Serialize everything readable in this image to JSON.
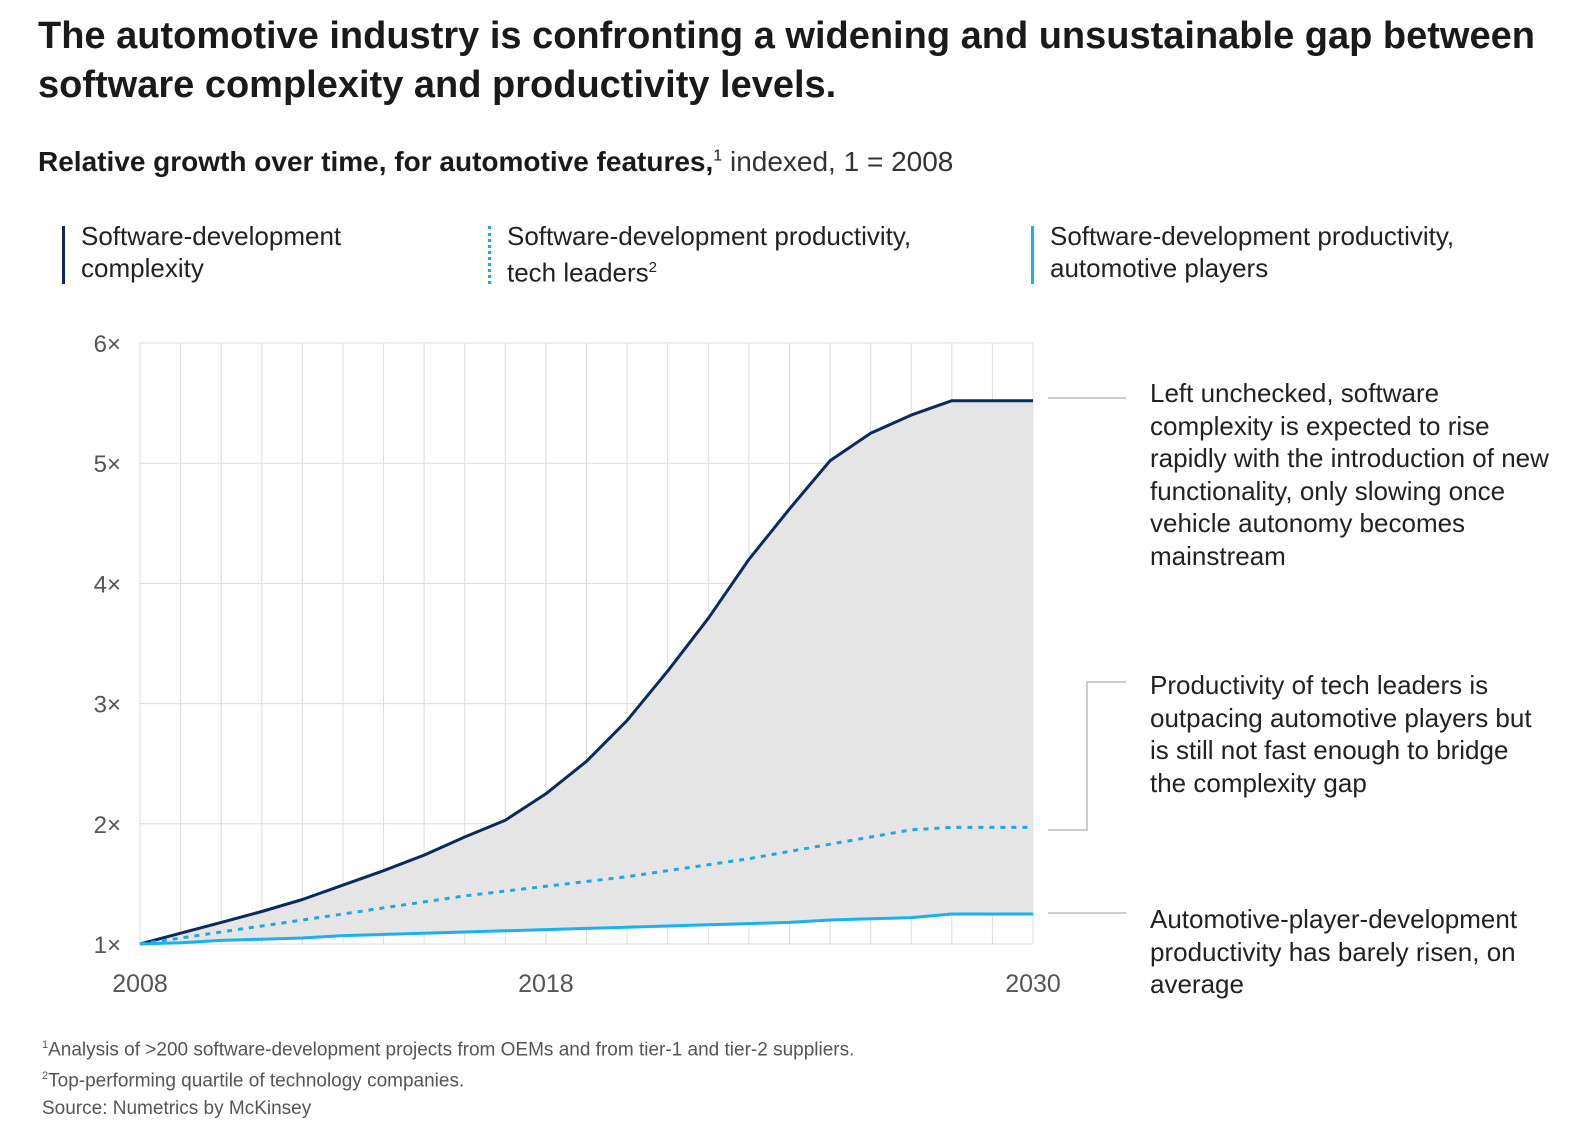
{
  "title": "The automotive industry is confronting a widening and unsustainable gap between software complexity and productivity levels.",
  "subtitle": {
    "bold": "Relative growth over time, for automotive features,",
    "sup": "1",
    "rest": " indexed, 1 = 2008"
  },
  "legend": [
    {
      "label_line1": "Software-development",
      "label_line2": "complexity",
      "sup": "",
      "style": "solid-dark"
    },
    {
      "label_line1": "Software-development productivity,",
      "label_line2": "tech leaders",
      "sup": "2",
      "style": "dotted"
    },
    {
      "label_line1": "Software-development productivity,",
      "label_line2": "automotive players",
      "sup": "",
      "style": "solid-light"
    }
  ],
  "annotations": {
    "complexity": "Left unchecked, software complexity is expected to rise rapidly with the introduction of new functionality, only slowing once vehicle autonomy becomes mainstream",
    "tech_leaders": "Productivity of tech leaders is outpacing automotive players but is still not fast enough to bridge the complexity gap",
    "automotive": "Automotive-player-development productivity has barely risen, on average"
  },
  "footnotes": {
    "f1_sup": "1",
    "f1": "Analysis of >200 software-development projects from OEMs and from tier-1 and tier-2 suppliers.",
    "f2_sup": "2",
    "f2": "Top-performing quartile of technology companies.",
    "source": "Source: Numetrics by McKinsey"
  },
  "colors": {
    "complexity": "#0d2a5a",
    "tech_leaders": "#1fa8e6",
    "automotive": "#1ab2ee",
    "gap_fill": "#e5e5e5",
    "grid": "#dcdcdc",
    "axis_text": "#555555"
  },
  "chart_data": {
    "type": "line",
    "title": "Relative growth over time, for automotive features, indexed, 1 = 2008",
    "xlabel": "",
    "ylabel": "",
    "x": [
      2008,
      2009,
      2010,
      2011,
      2012,
      2013,
      2014,
      2015,
      2016,
      2017,
      2018,
      2019,
      2020,
      2021,
      2022,
      2023,
      2024,
      2025,
      2026,
      2027,
      2028,
      2029,
      2030
    ],
    "x_tick_labels": [
      "2008",
      "2018",
      "2030"
    ],
    "x_tick_values": [
      2008,
      2018,
      2030
    ],
    "y_tick_labels": [
      "1×",
      "2×",
      "3×",
      "4×",
      "5×",
      "6×"
    ],
    "y_tick_values": [
      1,
      2,
      3,
      4,
      5,
      6
    ],
    "xlim": [
      2008,
      2030
    ],
    "ylim": [
      1,
      6
    ],
    "grid": true,
    "fill_between": [
      "Software-development complexity",
      "Software-development productivity, automotive players"
    ],
    "series": [
      {
        "name": "Software-development complexity",
        "style": "solid",
        "values": [
          1.0,
          1.09,
          1.18,
          1.27,
          1.37,
          1.49,
          1.61,
          1.74,
          1.89,
          2.03,
          2.25,
          2.52,
          2.86,
          3.27,
          3.71,
          4.2,
          4.62,
          5.02,
          5.25,
          5.4,
          5.52,
          5.52,
          5.52
        ]
      },
      {
        "name": "Software-development productivity, tech leaders",
        "style": "dotted",
        "values": [
          1.0,
          1.05,
          1.1,
          1.15,
          1.2,
          1.25,
          1.3,
          1.35,
          1.4,
          1.44,
          1.48,
          1.52,
          1.56,
          1.61,
          1.66,
          1.71,
          1.77,
          1.83,
          1.89,
          1.95,
          1.97,
          1.97,
          1.97
        ]
      },
      {
        "name": "Software-development productivity, automotive players",
        "style": "solid",
        "values": [
          1.0,
          1.01,
          1.03,
          1.04,
          1.05,
          1.07,
          1.08,
          1.09,
          1.1,
          1.11,
          1.12,
          1.13,
          1.14,
          1.15,
          1.16,
          1.17,
          1.18,
          1.2,
          1.21,
          1.22,
          1.25,
          1.25,
          1.25
        ]
      }
    ]
  }
}
